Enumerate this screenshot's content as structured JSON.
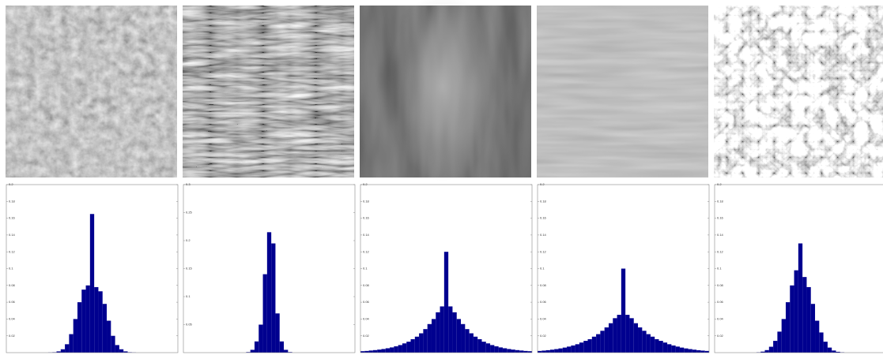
{
  "chart_data": [
    {
      "type": "histogram",
      "color": "#00008f",
      "xlim": [
        -41,
        41
      ],
      "ylim": [
        0,
        0.2
      ],
      "yticks": [
        0.02,
        0.04,
        0.06,
        0.08,
        0.1,
        0.12,
        0.14,
        0.16,
        0.18,
        0.2
      ],
      "bins": [
        -41,
        -39,
        -37,
        -35,
        -33,
        -31,
        -29,
        -27,
        -25,
        -23,
        -21,
        -19,
        -17,
        -15,
        -13,
        -11,
        -9,
        -7,
        -5,
        -3,
        -1,
        1,
        3,
        5,
        7,
        9,
        11,
        13,
        15,
        17,
        19,
        21,
        23,
        25,
        27,
        29,
        31,
        33,
        35,
        37,
        39,
        41
      ],
      "values": [
        0,
        0,
        0,
        0,
        0,
        0,
        0,
        0,
        0,
        0,
        0.0002,
        0.0005,
        0.0015,
        0.004,
        0.01,
        0.022,
        0.04,
        0.06,
        0.075,
        0.08,
        0.165,
        0.078,
        0.073,
        0.058,
        0.038,
        0.02,
        0.009,
        0.004,
        0.0015,
        0.0005,
        0.0002,
        0,
        0,
        0,
        0,
        0,
        0,
        0,
        0,
        0,
        0
      ]
    },
    {
      "type": "histogram",
      "color": "#00008f",
      "xlim": [
        -41,
        41
      ],
      "ylim": [
        0,
        0.3
      ],
      "yticks": [
        0.05,
        0.1,
        0.15,
        0.2,
        0.25,
        0.3
      ],
      "bins": [
        -41,
        -39,
        -37,
        -35,
        -33,
        -31,
        -29,
        -27,
        -25,
        -23,
        -21,
        -19,
        -17,
        -15,
        -13,
        -11,
        -9,
        -7,
        -5,
        -3,
        -1,
        1,
        3,
        5,
        7,
        9,
        11,
        13,
        15,
        17,
        19,
        21,
        23,
        25,
        27,
        29,
        31,
        33,
        35,
        37,
        39,
        41
      ],
      "values": [
        0,
        0,
        0,
        0,
        0,
        0,
        0,
        0,
        0,
        0,
        0,
        0,
        0,
        0,
        0,
        0.001,
        0.005,
        0.02,
        0.05,
        0.14,
        0.215,
        0.195,
        0.07,
        0.02,
        0.005,
        0.001,
        0,
        0,
        0,
        0,
        0,
        0,
        0,
        0,
        0,
        0,
        0,
        0,
        0,
        0,
        0
      ]
    },
    {
      "type": "histogram",
      "color": "#00008f",
      "xlim": [
        -41,
        41
      ],
      "ylim": [
        0,
        0.2
      ],
      "yticks": [
        0.02,
        0.04,
        0.06,
        0.08,
        0.1,
        0.12,
        0.14,
        0.16,
        0.18,
        0.2
      ],
      "bins": [
        -41,
        -39,
        -37,
        -35,
        -33,
        -31,
        -29,
        -27,
        -25,
        -23,
        -21,
        -19,
        -17,
        -15,
        -13,
        -11,
        -9,
        -7,
        -5,
        -3,
        -1,
        1,
        3,
        5,
        7,
        9,
        11,
        13,
        15,
        17,
        19,
        21,
        23,
        25,
        27,
        29,
        31,
        33,
        35,
        37,
        39,
        41
      ],
      "values": [
        0.0017,
        0.002,
        0.0025,
        0.003,
        0.0036,
        0.0043,
        0.0052,
        0.0062,
        0.0075,
        0.009,
        0.011,
        0.013,
        0.016,
        0.019,
        0.023,
        0.028,
        0.034,
        0.04,
        0.048,
        0.055,
        0.12,
        0.055,
        0.048,
        0.04,
        0.034,
        0.028,
        0.023,
        0.019,
        0.016,
        0.013,
        0.011,
        0.009,
        0.0075,
        0.0062,
        0.0052,
        0.0043,
        0.0036,
        0.003,
        0.0025,
        0.002,
        0.0017
      ]
    },
    {
      "type": "histogram",
      "color": "#00008f",
      "xlim": [
        -41,
        41
      ],
      "ylim": [
        0,
        0.2
      ],
      "yticks": [
        0.02,
        0.04,
        0.06,
        0.08,
        0.1,
        0.12,
        0.14,
        0.16,
        0.18,
        0.2
      ],
      "bins": [
        -41,
        -39,
        -37,
        -35,
        -33,
        -31,
        -29,
        -27,
        -25,
        -23,
        -21,
        -19,
        -17,
        -15,
        -13,
        -11,
        -9,
        -7,
        -5,
        -3,
        -1,
        1,
        3,
        5,
        7,
        9,
        11,
        13,
        15,
        17,
        19,
        21,
        23,
        25,
        27,
        29,
        31,
        33,
        35,
        37,
        39,
        41
      ],
      "values": [
        0.002,
        0.0024,
        0.0029,
        0.0035,
        0.0042,
        0.005,
        0.006,
        0.0072,
        0.0085,
        0.01,
        0.012,
        0.014,
        0.016,
        0.019,
        0.022,
        0.026,
        0.03,
        0.035,
        0.041,
        0.045,
        0.1,
        0.045,
        0.041,
        0.035,
        0.03,
        0.026,
        0.022,
        0.019,
        0.016,
        0.014,
        0.012,
        0.01,
        0.0085,
        0.0072,
        0.006,
        0.005,
        0.0042,
        0.0035,
        0.0029,
        0.0024,
        0.002
      ]
    },
    {
      "type": "histogram",
      "color": "#00008f",
      "xlim": [
        -41,
        41
      ],
      "ylim": [
        0,
        0.2
      ],
      "yticks": [
        0.02,
        0.04,
        0.06,
        0.08,
        0.1,
        0.12,
        0.14,
        0.16,
        0.18,
        0.2
      ],
      "bins": [
        -41,
        -39,
        -37,
        -35,
        -33,
        -31,
        -29,
        -27,
        -25,
        -23,
        -21,
        -19,
        -17,
        -15,
        -13,
        -11,
        -9,
        -7,
        -5,
        -3,
        -1,
        1,
        3,
        5,
        7,
        9,
        11,
        13,
        15,
        17,
        19,
        21,
        23,
        25,
        27,
        29,
        31,
        33,
        35,
        37,
        39,
        41
      ],
      "values": [
        0,
        0,
        0,
        0,
        0,
        0,
        0,
        0,
        0,
        0,
        0.0004,
        0.0012,
        0.003,
        0.007,
        0.014,
        0.025,
        0.04,
        0.06,
        0.08,
        0.098,
        0.13,
        0.09,
        0.078,
        0.058,
        0.038,
        0.024,
        0.013,
        0.006,
        0.0025,
        0.001,
        0.0004,
        0,
        0,
        0,
        0,
        0,
        0,
        0,
        0,
        0,
        0
      ]
    }
  ]
}
